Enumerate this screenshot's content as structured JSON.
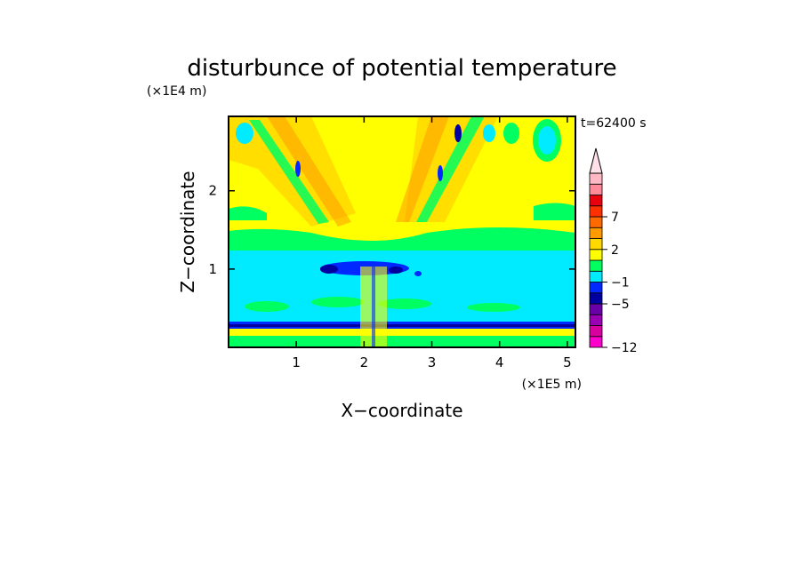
{
  "chart_data": {
    "type": "heatmap",
    "title": "disturbunce of potential temperature",
    "xlabel": "X−coordinate",
    "ylabel": "Z−coordinate",
    "x_scale_label": "(×1E5 m)",
    "y_scale_label": "(×1E4 m)",
    "time_label": "t=62400 s",
    "xlim": [
      0,
      5.12
    ],
    "ylim": [
      0,
      2.95
    ],
    "x_ticks": [
      "1",
      "2",
      "3",
      "4",
      "5"
    ],
    "y_ticks": [
      "1",
      "2"
    ],
    "colorbar": {
      "tick_labels": [
        "−12",
        "−5",
        "−1",
        "2",
        "7"
      ],
      "colors": [
        "#ff00cc",
        "#d8009f",
        "#9b00b4",
        "#6a00a8",
        "#0000a0",
        "#0028ff",
        "#00ebff",
        "#00ff60",
        "#ffff00",
        "#ffd800",
        "#ff9a00",
        "#ff6a00",
        "#ff3000",
        "#e8000e",
        "#ff8a9a",
        "#ffb8c4",
        "#ffe0e8"
      ]
    }
  }
}
